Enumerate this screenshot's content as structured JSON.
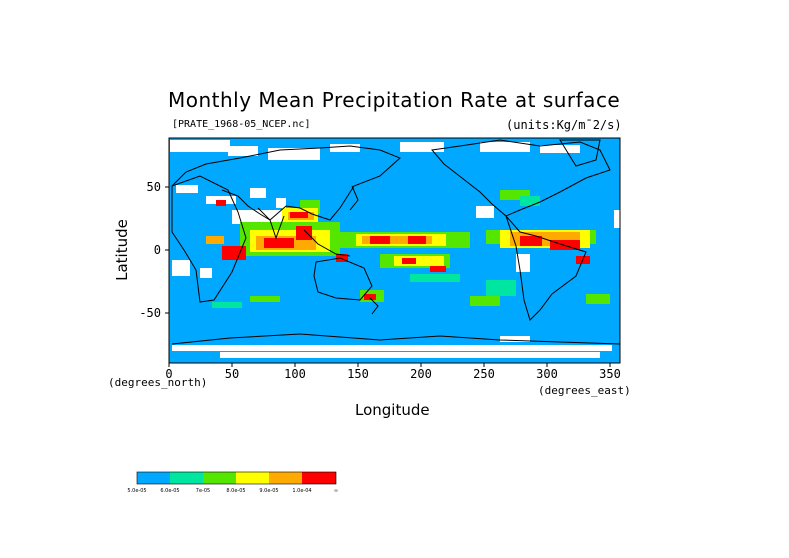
{
  "map": {
    "title": "Monthly Mean Precipitation Rate at surface",
    "file_label": "[PRATE_1968-05_NCEP.nc]",
    "units_label": "(units:Kg/m¯2/s)",
    "xlabel": "Longitude",
    "ylabel": "Latitude",
    "x_unit_label": "(degrees_north)",
    "y_unit_label": "(degrees_east)",
    "x_ticks": [
      "0",
      "50",
      "100",
      "150",
      "200",
      "250",
      "300",
      "350"
    ],
    "y_ticks": [
      "50",
      "0",
      "-50"
    ],
    "colors": {
      "ocean_background": "#00a8ff",
      "missing": "#ffffff",
      "level1": "#00a8ff",
      "level2": "#00e6a0",
      "level3": "#00e68c",
      "level4": "#55e600",
      "level5": "#ffff00",
      "level6": "#ffaa00",
      "level7": "#ff0000"
    }
  },
  "colorbar": {
    "labels": [
      "5.0e-05",
      "6.0e-05",
      "7e-05",
      "8.0e-05",
      "9.0e-05",
      "1.0e-04",
      "∞"
    ]
  }
}
